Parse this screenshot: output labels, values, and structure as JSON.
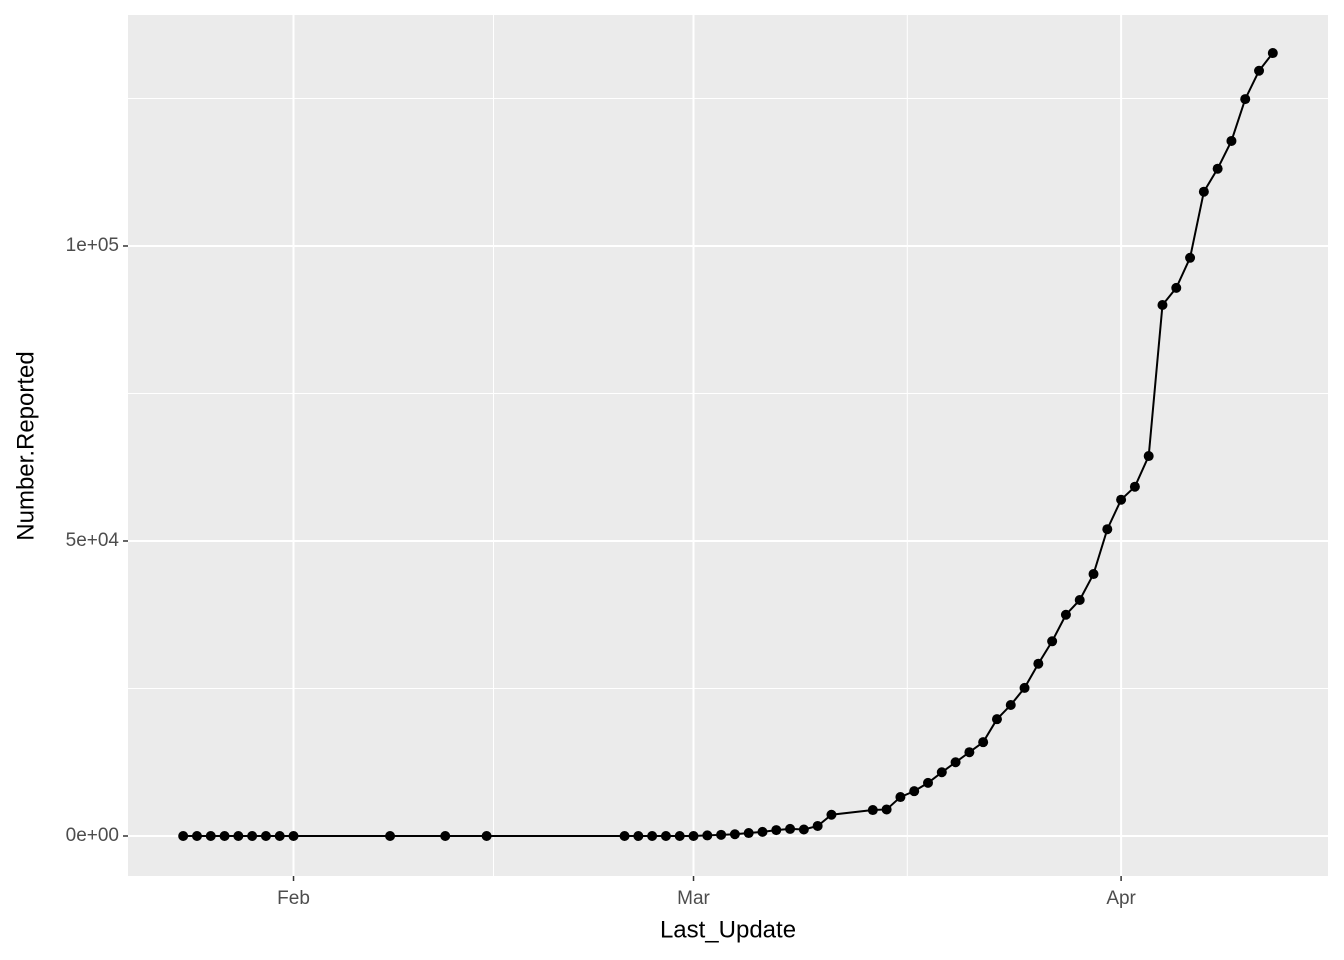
{
  "chart_data": {
    "type": "line",
    "x_label": "Last_Update",
    "y_label": "Number.Reported",
    "x": [
      "01-24",
      "01-25",
      "01-26",
      "01-27",
      "01-28",
      "01-29",
      "01-30",
      "01-31",
      "02-01",
      "02-08",
      "02-12",
      "02-15",
      "02-25",
      "02-26",
      "02-27",
      "02-28",
      "02-29",
      "03-01",
      "03-02",
      "03-03",
      "03-04",
      "03-05",
      "03-06",
      "03-07",
      "03-08",
      "03-09",
      "03-10",
      "03-11",
      "03-14",
      "03-15",
      "03-16",
      "03-17",
      "03-18",
      "03-19",
      "03-20",
      "03-21",
      "03-22",
      "03-23",
      "03-24",
      "03-25",
      "03-26",
      "03-27",
      "03-28",
      "03-29",
      "03-30",
      "03-31",
      "04-01",
      "04-02",
      "04-03",
      "04-04",
      "04-05",
      "04-06",
      "04-07",
      "04-08",
      "04-09",
      "04-10",
      "04-11",
      "04-12"
    ],
    "series": [
      {
        "name": "Number.Reported",
        "color": "#000000",
        "values": [
          0,
          0,
          0,
          0,
          0,
          0,
          0,
          0,
          0,
          0,
          0,
          0,
          0,
          0,
          0,
          0,
          0,
          0,
          100,
          200,
          300,
          500,
          700,
          1000,
          1200,
          1100,
          1700,
          3600,
          4400,
          4500,
          6600,
          7600,
          9000,
          10800,
          12500,
          14200,
          15900,
          19800,
          22200,
          25100,
          29200,
          33000,
          37500,
          40000,
          44400,
          52000,
          57000,
          59200,
          64400,
          90000,
          92900,
          98000,
          109200,
          113100,
          117800,
          124900,
          129700,
          132700
        ]
      }
    ],
    "xlim": [
      "01-20",
      "04-16"
    ],
    "xticks": [
      {
        "value": "02-01",
        "label": "Feb"
      },
      {
        "value": "03-01",
        "label": "Mar"
      },
      {
        "value": "04-01",
        "label": "Apr"
      }
    ],
    "ylim": [
      -6780,
      139150
    ],
    "yticks": [
      {
        "value": 0,
        "label": "0e+00"
      },
      {
        "value": 50000,
        "label": "5e+04"
      },
      {
        "value": 100000,
        "label": "1e+05"
      }
    ],
    "grid": true,
    "minor_grid": true,
    "points": true
  }
}
